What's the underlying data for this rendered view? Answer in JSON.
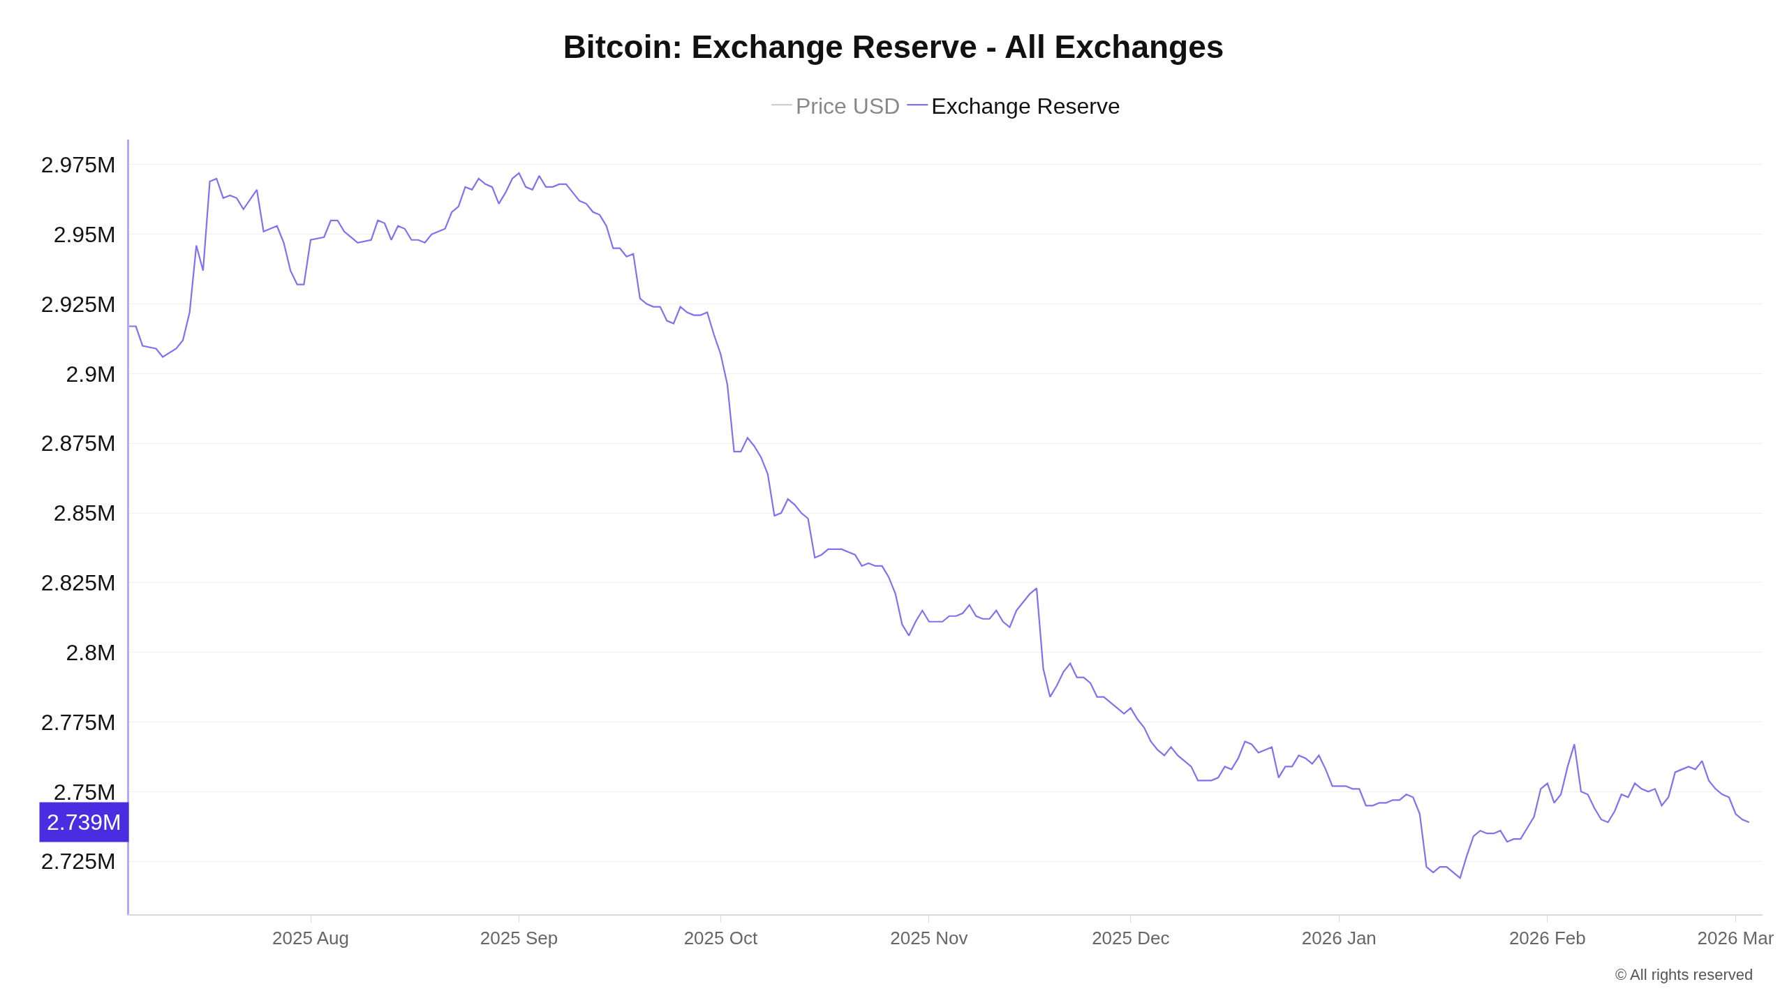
{
  "chart_data": {
    "type": "line",
    "title": "Bitcoin: Exchange Reserve - All Exchanges",
    "x": [
      "2025-07-05",
      "2025-07-06",
      "2025-07-07",
      "2025-07-09",
      "2025-07-10",
      "2025-07-12",
      "2025-07-13",
      "2025-07-14",
      "2025-07-15",
      "2025-07-16",
      "2025-07-17",
      "2025-07-18",
      "2025-07-19",
      "2025-07-20",
      "2025-07-21",
      "2025-07-22",
      "2025-07-24",
      "2025-07-25",
      "2025-07-27",
      "2025-07-28",
      "2025-07-29",
      "2025-07-30",
      "2025-07-31",
      "2025-08-01",
      "2025-08-03",
      "2025-08-04",
      "2025-08-05",
      "2025-08-06",
      "2025-08-08",
      "2025-08-10",
      "2025-08-11",
      "2025-08-12",
      "2025-08-13",
      "2025-08-14",
      "2025-08-15",
      "2025-08-16",
      "2025-08-17",
      "2025-08-18",
      "2025-08-19",
      "2025-08-20",
      "2025-08-21",
      "2025-08-22",
      "2025-08-23",
      "2025-08-24",
      "2025-08-25",
      "2025-08-26",
      "2025-08-27",
      "2025-08-28",
      "2025-08-29",
      "2025-08-30",
      "2025-08-31",
      "2025-09-01",
      "2025-09-02",
      "2025-09-03",
      "2025-09-04",
      "2025-09-05",
      "2025-09-06",
      "2025-09-07",
      "2025-09-08",
      "2025-09-09",
      "2025-09-10",
      "2025-09-11",
      "2025-09-12",
      "2025-09-13",
      "2025-09-14",
      "2025-09-15",
      "2025-09-16",
      "2025-09-17",
      "2025-09-18",
      "2025-09-19",
      "2025-09-20",
      "2025-09-21",
      "2025-09-22",
      "2025-09-23",
      "2025-09-24",
      "2025-09-25",
      "2025-09-26",
      "2025-09-27",
      "2025-09-28",
      "2025-09-29",
      "2025-09-30",
      "2025-10-01",
      "2025-10-02",
      "2025-10-03",
      "2025-10-04",
      "2025-10-05",
      "2025-10-06",
      "2025-10-07",
      "2025-10-08",
      "2025-10-09",
      "2025-10-10",
      "2025-10-11",
      "2025-10-12",
      "2025-10-13",
      "2025-10-14",
      "2025-10-15",
      "2025-10-16",
      "2025-10-17",
      "2025-10-18",
      "2025-10-19",
      "2025-10-20",
      "2025-10-21",
      "2025-10-22",
      "2025-10-23",
      "2025-10-24",
      "2025-10-25",
      "2025-10-26",
      "2025-10-27",
      "2025-10-28",
      "2025-10-29",
      "2025-10-30",
      "2025-10-31",
      "2025-11-01",
      "2025-11-02",
      "2025-11-03",
      "2025-11-04",
      "2025-11-05",
      "2025-11-06",
      "2025-11-07",
      "2025-11-08",
      "2025-11-09",
      "2025-11-10",
      "2025-11-11",
      "2025-11-12",
      "2025-11-13",
      "2025-11-14",
      "2025-11-15",
      "2025-11-16",
      "2025-11-17",
      "2025-11-18",
      "2025-11-19",
      "2025-11-20",
      "2025-11-21",
      "2025-11-22",
      "2025-11-23",
      "2025-11-24",
      "2025-11-25",
      "2025-11-26",
      "2025-11-27",
      "2025-11-28",
      "2025-11-29",
      "2025-11-30",
      "2025-12-01",
      "2025-12-02",
      "2025-12-03",
      "2025-12-04",
      "2025-12-05",
      "2025-12-06",
      "2025-12-07",
      "2025-12-08",
      "2025-12-09",
      "2025-12-10",
      "2025-12-11",
      "2025-12-12",
      "2025-12-13",
      "2025-12-14",
      "2025-12-15",
      "2025-12-16",
      "2025-12-17",
      "2025-12-18",
      "2025-12-19",
      "2025-12-20",
      "2025-12-21",
      "2025-12-22",
      "2025-12-23",
      "2025-12-24",
      "2025-12-25",
      "2025-12-26",
      "2025-12-27",
      "2025-12-28",
      "2025-12-29",
      "2025-12-30",
      "2025-12-31",
      "2026-01-01",
      "2026-01-02",
      "2026-01-03",
      "2026-01-04",
      "2026-01-05",
      "2026-01-06",
      "2026-01-07",
      "2026-01-08",
      "2026-01-09",
      "2026-01-10",
      "2026-01-11",
      "2026-01-12",
      "2026-01-13",
      "2026-01-14",
      "2026-01-15",
      "2026-01-16",
      "2026-01-17",
      "2026-01-18",
      "2026-01-19",
      "2026-01-20",
      "2026-01-21",
      "2026-01-22",
      "2026-01-23",
      "2026-01-24",
      "2026-01-25",
      "2026-01-26",
      "2026-01-27",
      "2026-01-28",
      "2026-01-29",
      "2026-01-30",
      "2026-01-31",
      "2026-02-01",
      "2026-02-02",
      "2026-02-03",
      "2026-02-04",
      "2026-02-05",
      "2026-02-06",
      "2026-02-07",
      "2026-02-08",
      "2026-02-09",
      "2026-02-10",
      "2026-02-11",
      "2026-02-12",
      "2026-02-13",
      "2026-02-14",
      "2026-02-15",
      "2026-02-16",
      "2026-02-17",
      "2026-02-18",
      "2026-02-19",
      "2026-02-20",
      "2026-02-21",
      "2026-02-22",
      "2026-02-23",
      "2026-02-24",
      "2026-02-25",
      "2026-02-26",
      "2026-02-27",
      "2026-02-28",
      "2026-03-01",
      "2026-03-02",
      "2026-03-03"
    ],
    "series": [
      {
        "name": "Price USD",
        "color": "#9e9e9e",
        "values": [
          null,
          null,
          null,
          null,
          null,
          null,
          null,
          null,
          null,
          null,
          null,
          null,
          null,
          null,
          null,
          null,
          null,
          null,
          null,
          null,
          null,
          null,
          null,
          null,
          null,
          null,
          null,
          null,
          null,
          null,
          null,
          null,
          null,
          null,
          null,
          null,
          null,
          null,
          null,
          null,
          null,
          null,
          null,
          null,
          null,
          null,
          null,
          null,
          null,
          null,
          null,
          null,
          null,
          null,
          null,
          null,
          null,
          null,
          null,
          null,
          null,
          null,
          null,
          null,
          null,
          null,
          null,
          null,
          null,
          null,
          null,
          null,
          null,
          null,
          null,
          null,
          null,
          null,
          null,
          null,
          null,
          null,
          null,
          null,
          null,
          null,
          null,
          null,
          null,
          null,
          null,
          null,
          null,
          null,
          null,
          null,
          null,
          null,
          null,
          null,
          null,
          null,
          null,
          null,
          null,
          null,
          null,
          null,
          null,
          null,
          null,
          null,
          null,
          null,
          null,
          null,
          null,
          null,
          null,
          null,
          null,
          null,
          null,
          null,
          null,
          null,
          null,
          null,
          null,
          null,
          null,
          null,
          null,
          null,
          null,
          null,
          null,
          null,
          null,
          null,
          null,
          null,
          null,
          null,
          null,
          null,
          null,
          null,
          null,
          null,
          null,
          null,
          null,
          null,
          null,
          null,
          null,
          null,
          null,
          null,
          null,
          null,
          null,
          null,
          null,
          null,
          null,
          null,
          null,
          null,
          null,
          null,
          null,
          null,
          null,
          null,
          null,
          null,
          null,
          null,
          null,
          null,
          null,
          null,
          null,
          null,
          null,
          null,
          null,
          null,
          null,
          null,
          null,
          null,
          null,
          null,
          null,
          null,
          null,
          null,
          null,
          null,
          null,
          null,
          null,
          null,
          null,
          null,
          null,
          null,
          null,
          null,
          null,
          null,
          null,
          null,
          null,
          null,
          null,
          null,
          null,
          null,
          null,
          null,
          null,
          null,
          null,
          null,
          null,
          null,
          null,
          null,
          null,
          null,
          null
        ]
      },
      {
        "name": "Exchange Reserve",
        "color": "#8170f0",
        "values": [
          2917000,
          2917000,
          2910000,
          2909000,
          2906000,
          2909000,
          2912000,
          2922000,
          2946000,
          2937000,
          2969000,
          2970000,
          2963000,
          2964000,
          2963000,
          2959000,
          2966000,
          2951000,
          2953000,
          2947000,
          2937000,
          2932000,
          2932000,
          2948000,
          2949000,
          2955000,
          2955000,
          2951000,
          2947000,
          2948000,
          2955000,
          2954000,
          2948000,
          2953000,
          2952000,
          2948000,
          2948000,
          2947000,
          2950000,
          2951000,
          2952000,
          2958000,
          2960000,
          2967000,
          2966000,
          2970000,
          2968000,
          2967000,
          2961000,
          2965000,
          2970000,
          2972000,
          2967000,
          2966000,
          2971000,
          2967000,
          2967000,
          2968000,
          2968000,
          2965000,
          2962000,
          2961000,
          2958000,
          2957000,
          2953000,
          2945000,
          2945000,
          2942000,
          2943000,
          2927000,
          2925000,
          2924000,
          2924000,
          2919000,
          2918000,
          2924000,
          2922000,
          2921000,
          2921000,
          2922000,
          2914000,
          2907000,
          2896000,
          2872000,
          2872000,
          2877000,
          2874000,
          2870000,
          2864000,
          2849000,
          2850000,
          2855000,
          2853000,
          2850000,
          2848000,
          2834000,
          2835000,
          2837000,
          2837000,
          2837000,
          2836000,
          2835000,
          2831000,
          2832000,
          2831000,
          2831000,
          2827000,
          2821000,
          2810000,
          2806000,
          2811000,
          2815000,
          2811000,
          2811000,
          2811000,
          2813000,
          2813000,
          2814000,
          2817000,
          2813000,
          2812000,
          2812000,
          2815000,
          2811000,
          2809000,
          2815000,
          2818000,
          2821000,
          2823000,
          2794000,
          2784000,
          2788000,
          2793000,
          2796000,
          2791000,
          2791000,
          2789000,
          2784000,
          2784000,
          2782000,
          2780000,
          2778000,
          2780000,
          2776000,
          2773000,
          2768000,
          2765000,
          2763000,
          2766000,
          2763000,
          2761000,
          2759000,
          2754000,
          2754000,
          2754000,
          2755000,
          2759000,
          2758000,
          2762000,
          2768000,
          2767000,
          2764000,
          2765000,
          2766000,
          2755000,
          2759000,
          2759000,
          2763000,
          2762000,
          2760000,
          2763000,
          2758000,
          2752000,
          2752000,
          2752000,
          2751000,
          2751000,
          2745000,
          2745000,
          2746000,
          2746000,
          2747000,
          2747000,
          2749000,
          2748000,
          2742000,
          2723000,
          2721000,
          2723000,
          2723000,
          2721000,
          2719000,
          2727000,
          2734000,
          2736000,
          2735000,
          2735000,
          2736000,
          2732000,
          2733000,
          2733000,
          2737000,
          2741000,
          2751000,
          2753000,
          2746000,
          2749000,
          2759000,
          2767000,
          2750000,
          2749000,
          2744000,
          2740000,
          2739000,
          2743000,
          2749000,
          2748000,
          2753000,
          2751000,
          2750000,
          2751000,
          2745000,
          2748000,
          2757000,
          2758000,
          2759000,
          2758000,
          2761000,
          2754000,
          2751000,
          2749000,
          2748000,
          2742000,
          2740000,
          2739000
        ]
      }
    ],
    "xlim": [
      "2025-07-05",
      "2026-03-05"
    ],
    "xticks": [
      {
        "value": "2025-08-01",
        "label": "2025 Aug"
      },
      {
        "value": "2025-09-01",
        "label": "2025 Sep"
      },
      {
        "value": "2025-10-01",
        "label": "2025 Oct"
      },
      {
        "value": "2025-11-01",
        "label": "2025 Nov"
      },
      {
        "value": "2025-12-01",
        "label": "2025 Dec"
      },
      {
        "value": "2026-01-01",
        "label": "2026 Jan"
      },
      {
        "value": "2026-02-01",
        "label": "2026 Feb"
      },
      {
        "value": "2026-03-01",
        "label": "2026 Mar"
      }
    ],
    "ylim": [
      2706000,
      2984000
    ],
    "yticks": [
      {
        "value": 2725000,
        "label": "2.725M"
      },
      {
        "value": 2750000,
        "label": "2.75M"
      },
      {
        "value": 2775000,
        "label": "2.775M"
      },
      {
        "value": 2800000,
        "label": "2.8M"
      },
      {
        "value": 2825000,
        "label": "2.825M"
      },
      {
        "value": 2850000,
        "label": "2.85M"
      },
      {
        "value": 2875000,
        "label": "2.875M"
      },
      {
        "value": 2900000,
        "label": "2.9M"
      },
      {
        "value": 2925000,
        "label": "2.925M"
      },
      {
        "value": 2950000,
        "label": "2.95M"
      },
      {
        "value": 2975000,
        "label": "2.975M"
      }
    ],
    "grid": "y",
    "legend": "top",
    "line_style": "solid",
    "annotations": [
      "2.739M",
      "© All rights reserved"
    ]
  }
}
